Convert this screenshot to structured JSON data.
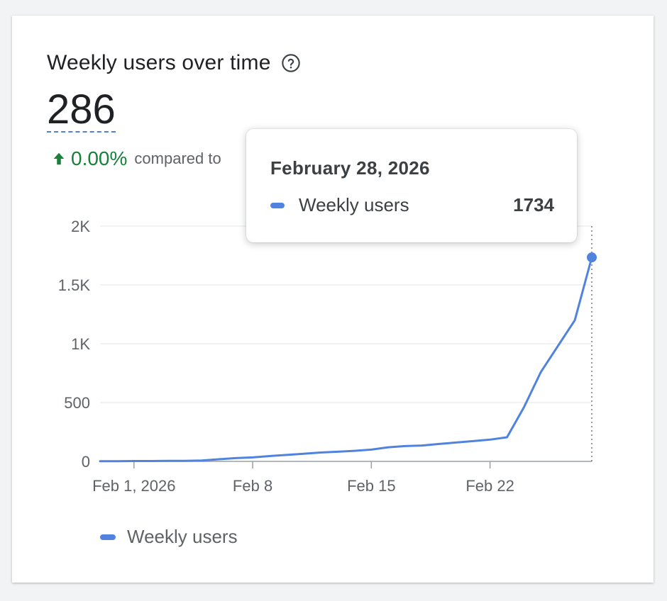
{
  "card": {
    "title": "Weekly users over time",
    "help_icon": "help-circle-icon",
    "big_number": "286",
    "change": {
      "icon": "arrow-up-icon",
      "value": "0.00%",
      "text": "compared to",
      "color": "#188038"
    }
  },
  "tooltip": {
    "date": "February 28, 2026",
    "series_label": "Weekly users",
    "value": "1734"
  },
  "legend": {
    "label": "Weekly users"
  },
  "colors": {
    "series": "#5083e0",
    "grid": "#e8eaed",
    "text": "#5f6368"
  },
  "chart_data": {
    "type": "line",
    "title": "Weekly users over time",
    "xlabel": "",
    "ylabel": "",
    "x_tick_labels": [
      "Feb 1, 2026",
      "Feb 8",
      "Feb 15",
      "Feb 22"
    ],
    "y_tick_labels": [
      "0",
      "500",
      "1K",
      "1.5K",
      "2K"
    ],
    "ylim": [
      0,
      2000
    ],
    "grid": true,
    "legend_position": "bottom-left",
    "series": [
      {
        "name": "Weekly users",
        "color": "#5083e0",
        "x": [
          "Jan 30",
          "Jan 31",
          "Feb 1",
          "Feb 2",
          "Feb 3",
          "Feb 4",
          "Feb 5",
          "Feb 6",
          "Feb 7",
          "Feb 8",
          "Feb 9",
          "Feb 10",
          "Feb 11",
          "Feb 12",
          "Feb 13",
          "Feb 14",
          "Feb 15",
          "Feb 16",
          "Feb 17",
          "Feb 18",
          "Feb 19",
          "Feb 20",
          "Feb 21",
          "Feb 22",
          "Feb 23",
          "Feb 24",
          "Feb 25",
          "Feb 26",
          "Feb 27",
          "Feb 28"
        ],
        "values": [
          2,
          2,
          3,
          3,
          4,
          5,
          8,
          18,
          28,
          34,
          45,
          55,
          65,
          75,
          82,
          90,
          100,
          120,
          130,
          135,
          148,
          160,
          172,
          185,
          205,
          460,
          760,
          980,
          1200,
          1734
        ]
      }
    ],
    "highlight": {
      "x": "Feb 28",
      "value": 1734
    }
  }
}
